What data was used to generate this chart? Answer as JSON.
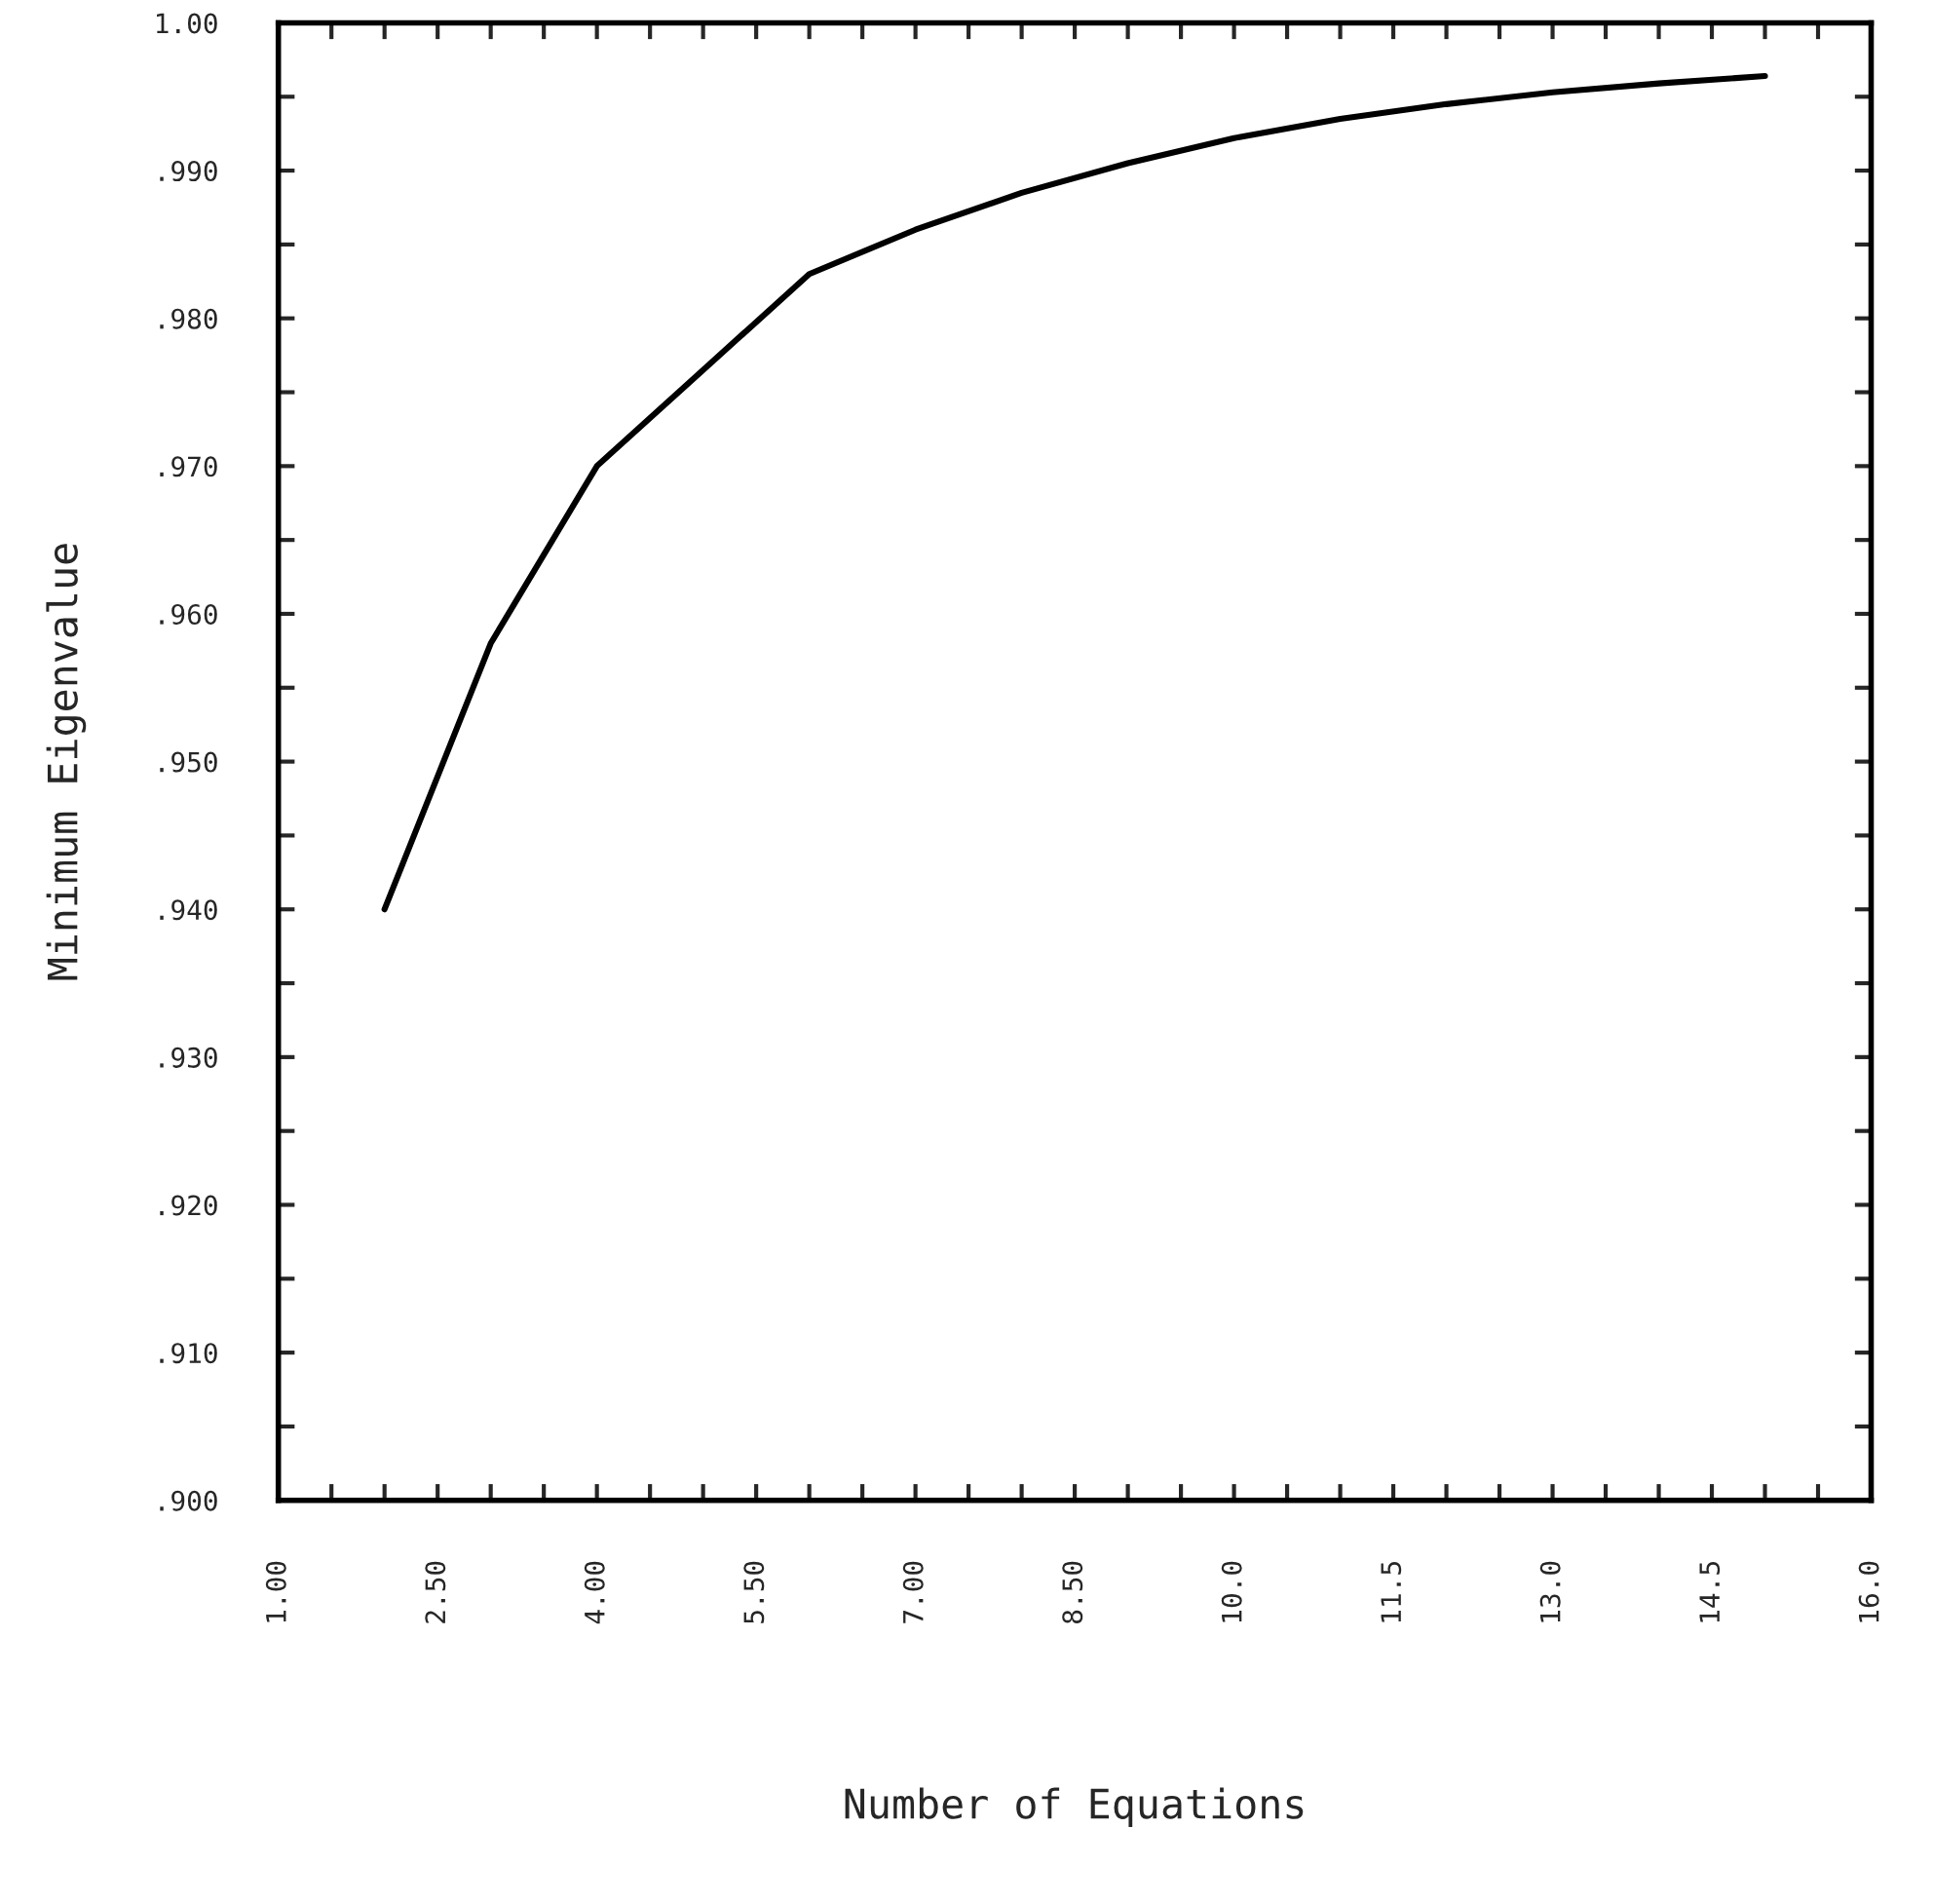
{
  "chart_data": {
    "type": "line",
    "xlabel": "Number of Equations",
    "ylabel": "Minimum Eigenvalue",
    "x": [
      2,
      3,
      4,
      5,
      6,
      7,
      8,
      9,
      10,
      11,
      12,
      13,
      14,
      15
    ],
    "series": [
      {
        "color": "#000000",
        "values": [
          0.94,
          0.958,
          0.97,
          0.9765,
          0.983,
          0.986,
          0.9885,
          0.9905,
          0.9922,
          0.9935,
          0.9945,
          0.9953,
          0.9959,
          0.9964
        ]
      }
    ],
    "xlim": [
      1,
      16
    ],
    "ylim": [
      0.9,
      1.0
    ],
    "xticks": [
      {
        "value": 1,
        "label": "1.00"
      },
      {
        "value": 1.5,
        "label": null
      },
      {
        "value": 2,
        "label": null
      },
      {
        "value": 2.5,
        "label": "2.50"
      },
      {
        "value": 3,
        "label": null
      },
      {
        "value": 3.5,
        "label": null
      },
      {
        "value": 4,
        "label": "4.00"
      },
      {
        "value": 4.5,
        "label": null
      },
      {
        "value": 5,
        "label": null
      },
      {
        "value": 5.5,
        "label": "5.50"
      },
      {
        "value": 6,
        "label": null
      },
      {
        "value": 6.5,
        "label": null
      },
      {
        "value": 7,
        "label": "7.00"
      },
      {
        "value": 7.5,
        "label": null
      },
      {
        "value": 8,
        "label": null
      },
      {
        "value": 8.5,
        "label": "8.50"
      },
      {
        "value": 9,
        "label": null
      },
      {
        "value": 9.5,
        "label": null
      },
      {
        "value": 10,
        "label": "10.0"
      },
      {
        "value": 10.5,
        "label": null
      },
      {
        "value": 11,
        "label": null
      },
      {
        "value": 11.5,
        "label": "11.5"
      },
      {
        "value": 12,
        "label": null
      },
      {
        "value": 12.5,
        "label": null
      },
      {
        "value": 13,
        "label": "13.0"
      },
      {
        "value": 13.5,
        "label": null
      },
      {
        "value": 14,
        "label": null
      },
      {
        "value": 14.5,
        "label": "14.5"
      },
      {
        "value": 15,
        "label": null
      },
      {
        "value": 15.5,
        "label": null
      },
      {
        "value": 16,
        "label": "16.0"
      }
    ],
    "yticks": [
      {
        "value": 0.9,
        "label": ".900"
      },
      {
        "value": 0.905,
        "label": null
      },
      {
        "value": 0.91,
        "label": ".910"
      },
      {
        "value": 0.915,
        "label": null
      },
      {
        "value": 0.92,
        "label": ".920"
      },
      {
        "value": 0.925,
        "label": null
      },
      {
        "value": 0.93,
        "label": ".930"
      },
      {
        "value": 0.935,
        "label": null
      },
      {
        "value": 0.94,
        "label": ".940"
      },
      {
        "value": 0.945,
        "label": null
      },
      {
        "value": 0.95,
        "label": ".950"
      },
      {
        "value": 0.955,
        "label": null
      },
      {
        "value": 0.96,
        "label": ".960"
      },
      {
        "value": 0.965,
        "label": null
      },
      {
        "value": 0.97,
        "label": ".970"
      },
      {
        "value": 0.975,
        "label": null
      },
      {
        "value": 0.98,
        "label": ".980"
      },
      {
        "value": 0.985,
        "label": null
      },
      {
        "value": 0.99,
        "label": ".990"
      },
      {
        "value": 0.995,
        "label": null
      },
      {
        "value": 1.0,
        "label": "1.00"
      }
    ],
    "grid": false,
    "legend": false,
    "marker": "none",
    "line_style": "solid"
  }
}
